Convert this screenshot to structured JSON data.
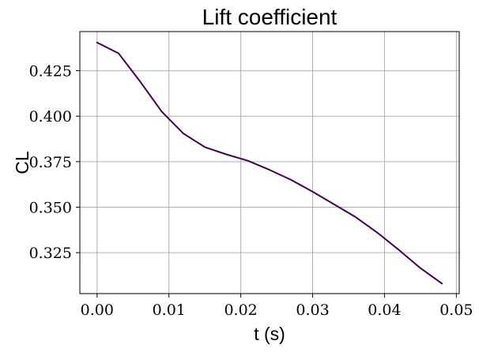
{
  "chart_data": {
    "type": "line",
    "title": "Lift coefficient",
    "xlabel": "t (s)",
    "ylabel": "CL",
    "xlim": [
      -0.0024,
      0.0504
    ],
    "ylim": [
      0.3025,
      0.4465
    ],
    "xticks": [
      0.0,
      0.01,
      0.02,
      0.03,
      0.04,
      0.05
    ],
    "xtick_labels": [
      "0.00",
      "0.01",
      "0.02",
      "0.03",
      "0.04",
      "0.05"
    ],
    "yticks": [
      0.325,
      0.35,
      0.375,
      0.4,
      0.425
    ],
    "ytick_labels": [
      "0.325",
      "0.350",
      "0.375",
      "0.400",
      "0.425"
    ],
    "grid": true,
    "series": [
      {
        "color": "#440154",
        "x": [
          0.0,
          0.003,
          0.006,
          0.009,
          0.012,
          0.015,
          0.018,
          0.021,
          0.024,
          0.027,
          0.03,
          0.033,
          0.036,
          0.039,
          0.042,
          0.045,
          0.048
        ],
        "y": [
          0.4405,
          0.4345,
          0.419,
          0.4025,
          0.3905,
          0.383,
          0.379,
          0.3755,
          0.3705,
          0.365,
          0.3585,
          0.3515,
          0.3445,
          0.336,
          0.3265,
          0.3165,
          0.308
        ]
      }
    ]
  }
}
